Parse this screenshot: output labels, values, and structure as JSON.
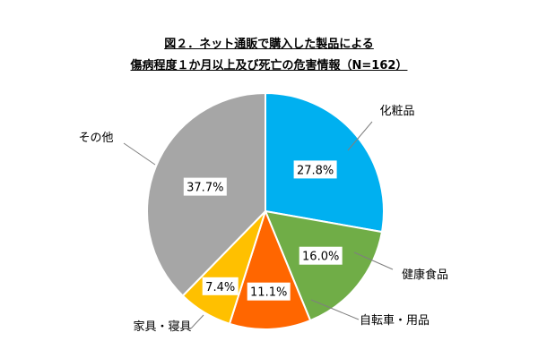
{
  "chart_data": {
    "type": "pie",
    "title": "図２．ネット通販で購入した製品による",
    "subtitle": "傷病程度１か月以上及び死亡の危害情報（N=162）",
    "slices": [
      {
        "label": "化粧品",
        "value": 27.8,
        "value_label": "27.8%",
        "color": "#00b0f0"
      },
      {
        "label": "健康食品",
        "value": 16.0,
        "value_label": "16.0%",
        "color": "#70ad47"
      },
      {
        "label": "自転車・用品",
        "value": 11.1,
        "value_label": "11.1%",
        "color": "#ff6600"
      },
      {
        "label": "家具・寝具",
        "value": 7.4,
        "value_label": "7.4%",
        "color": "#ffc000"
      },
      {
        "label": "その他",
        "value": 37.7,
        "value_label": "37.7%",
        "color": "#a6a6a6"
      }
    ],
    "start_angle": "12 o'clock",
    "direction": "clockwise",
    "legend": "none"
  }
}
